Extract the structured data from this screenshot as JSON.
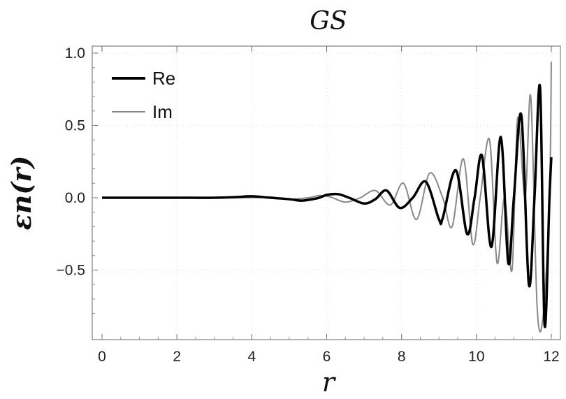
{
  "chart_data": {
    "type": "line",
    "title": "GS",
    "xlabel": "r",
    "ylabel": "εn(r)",
    "xlim": [
      0,
      12
    ],
    "ylim": [
      -0.9,
      1.0
    ],
    "x_ticks": [
      0,
      2,
      4,
      6,
      8,
      10,
      12
    ],
    "x_tick_labels": [
      "0",
      "2",
      "4",
      "6",
      "8",
      "10",
      "12"
    ],
    "y_ticks": [
      -0.5,
      0.0,
      0.5,
      1.0
    ],
    "y_tick_labels": [
      "−0.5",
      "0.0",
      "0.5",
      "1.0"
    ],
    "grid": true,
    "legend_position": "top-left",
    "series": [
      {
        "name": "Re",
        "color": "#000000",
        "style": "thick",
        "x": [
          0,
          1,
          2,
          3,
          3.6,
          4,
          4.5,
          5,
          5.3,
          5.5,
          5.8,
          6.0,
          6.3,
          6.6,
          7.0,
          7.3,
          7.6,
          7.95,
          8.3,
          8.65,
          9.0,
          9.1,
          9.45,
          9.75,
          9.95,
          10.15,
          10.4,
          10.65,
          10.85,
          11.0,
          11.2,
          11.4,
          11.55,
          11.7,
          11.82,
          11.95,
          12.0
        ],
        "y": [
          0,
          0,
          0,
          0,
          0.005,
          0.01,
          0.0,
          -0.01,
          -0.02,
          -0.015,
          0.0,
          0.02,
          0.025,
          0.0,
          -0.04,
          -0.01,
          0.05,
          -0.07,
          0.0,
          0.11,
          -0.15,
          -0.14,
          0.19,
          -0.25,
          0.0,
          0.29,
          -0.34,
          0.42,
          -0.45,
          0.0,
          0.57,
          -0.6,
          0.0,
          0.76,
          -0.88,
          0.0,
          0.28
        ]
      },
      {
        "name": "Im",
        "color": "#888888",
        "style": "thin",
        "x": [
          0,
          2,
          4,
          4.5,
          5,
          5.5,
          5.8,
          6.1,
          6.5,
          6.9,
          7.3,
          7.7,
          8.05,
          8.4,
          8.75,
          9.1,
          9.35,
          9.65,
          9.9,
          10.1,
          10.35,
          10.55,
          10.75,
          10.95,
          11.1,
          11.3,
          11.45,
          11.62,
          11.78,
          11.95,
          12.0
        ],
        "y": [
          0,
          0,
          0,
          0.005,
          -0.01,
          0.0,
          0.015,
          0.005,
          -0.03,
          0.0,
          0.05,
          -0.05,
          0.1,
          -0.15,
          0.17,
          0.0,
          -0.2,
          0.27,
          -0.32,
          0.0,
          0.4,
          -0.45,
          0.0,
          -0.5,
          0.55,
          0.0,
          0.7,
          -0.75,
          -0.82,
          0.0,
          0.94
        ]
      }
    ]
  }
}
